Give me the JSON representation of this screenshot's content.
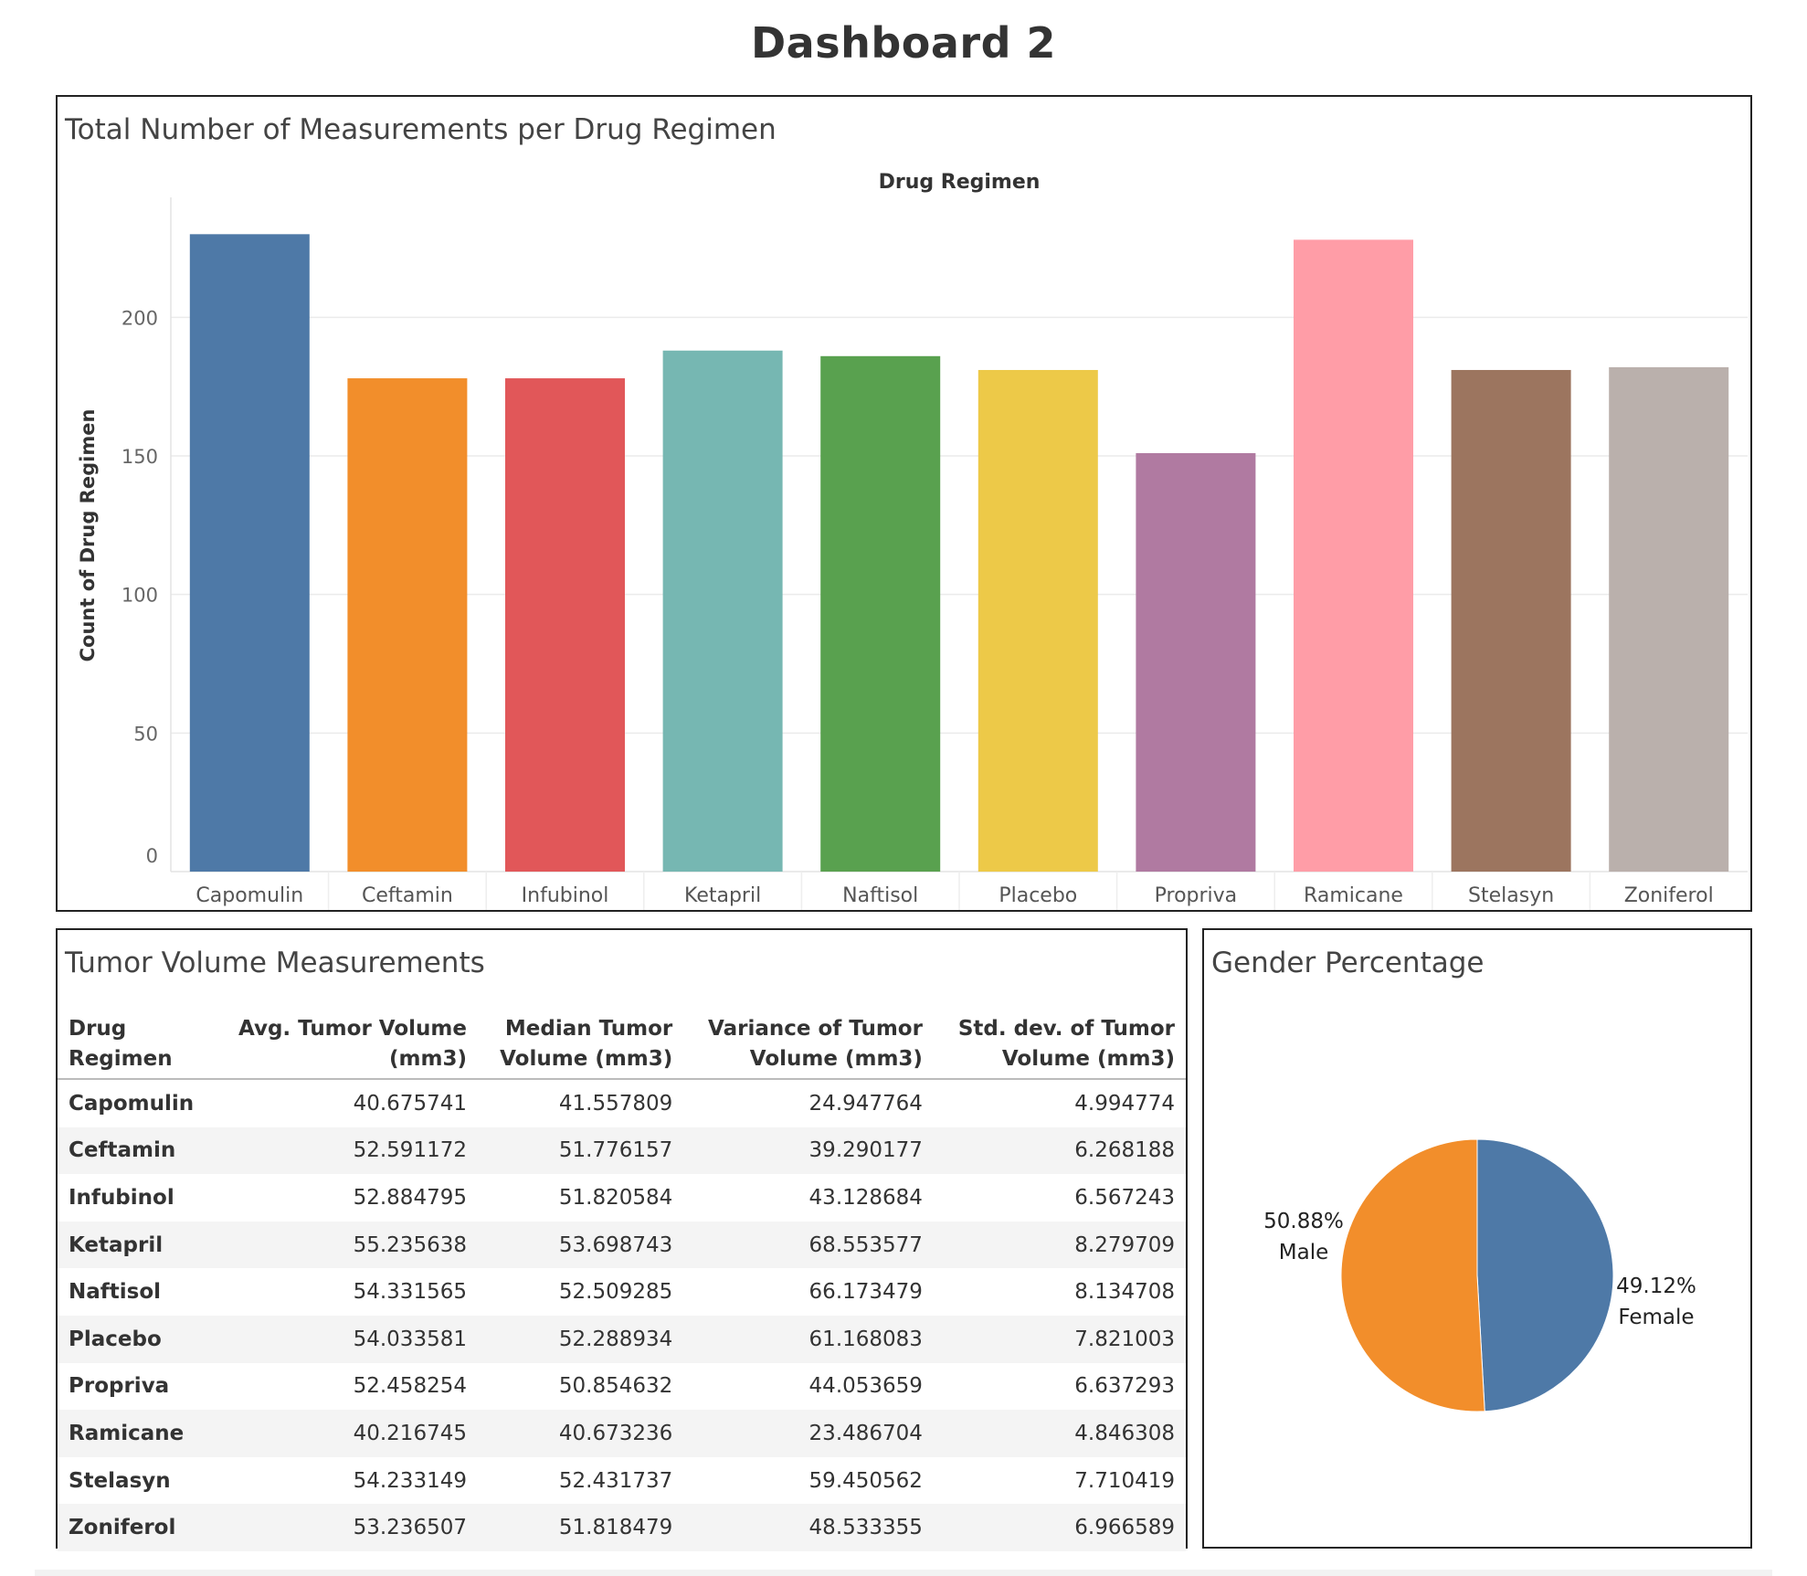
{
  "dashboard": {
    "title": "Dashboard 2"
  },
  "bar_panel": {
    "title": "Total Number of Measurements per Drug Regimen"
  },
  "table_panel": {
    "title": "Tumor Volume Measurements",
    "columns": [
      [
        "Drug",
        "Regimen"
      ],
      [
        "Avg. Tumor Volume",
        "(mm3)"
      ],
      [
        "Median Tumor",
        "Volume (mm3)"
      ],
      [
        "Variance of Tumor",
        "Volume (mm3)"
      ],
      [
        "Std. dev. of Tumor",
        "Volume (mm3)"
      ]
    ],
    "rows": [
      [
        "Capomulin",
        "40.675741",
        "41.557809",
        "24.947764",
        "4.994774"
      ],
      [
        "Ceftamin",
        "52.591172",
        "51.776157",
        "39.290177",
        "6.268188"
      ],
      [
        "Infubinol",
        "52.884795",
        "51.820584",
        "43.128684",
        "6.567243"
      ],
      [
        "Ketapril",
        "55.235638",
        "53.698743",
        "68.553577",
        "8.279709"
      ],
      [
        "Naftisol",
        "54.331565",
        "52.509285",
        "66.173479",
        "8.134708"
      ],
      [
        "Placebo",
        "54.033581",
        "52.288934",
        "61.168083",
        "7.821003"
      ],
      [
        "Propriva",
        "52.458254",
        "50.854632",
        "44.053659",
        "6.637293"
      ],
      [
        "Ramicane",
        "40.216745",
        "40.673236",
        "23.486704",
        "4.846308"
      ],
      [
        "Stelasyn",
        "54.233149",
        "52.431737",
        "59.450562",
        "7.710419"
      ],
      [
        "Zoniferol",
        "53.236507",
        "51.818479",
        "48.533355",
        "6.966589"
      ]
    ]
  },
  "pie_panel": {
    "title": "Gender Percentage"
  },
  "chart_data": [
    {
      "type": "bar",
      "title": "Total Number of Measurements per Drug Regimen",
      "column_header": "Drug Regimen",
      "ylabel": "Count of Drug Regimen",
      "xlabel": "",
      "ylim": [
        0,
        240
      ],
      "yticks": [
        0,
        50,
        100,
        150,
        200
      ],
      "grid": true,
      "categories": [
        "Capomulin",
        "Ceftamin",
        "Infubinol",
        "Ketapril",
        "Naftisol",
        "Placebo",
        "Propriva",
        "Ramicane",
        "Stelasyn",
        "Zoniferol"
      ],
      "values": [
        230,
        178,
        178,
        188,
        186,
        181,
        151,
        228,
        181,
        182
      ],
      "colors": [
        "#4e79a7",
        "#f28e2b",
        "#e15759",
        "#76b7b2",
        "#59a14f",
        "#edc948",
        "#b07aa1",
        "#ff9da7",
        "#9c755f",
        "#bab0ac"
      ]
    },
    {
      "type": "pie",
      "title": "Gender Percentage",
      "slices": [
        {
          "label": "Male",
          "value": 50.88,
          "value_label": "50.88%",
          "color": "#f28e2b"
        },
        {
          "label": "Female",
          "value": 49.12,
          "value_label": "49.12%",
          "color": "#4e79a7"
        }
      ]
    }
  ]
}
